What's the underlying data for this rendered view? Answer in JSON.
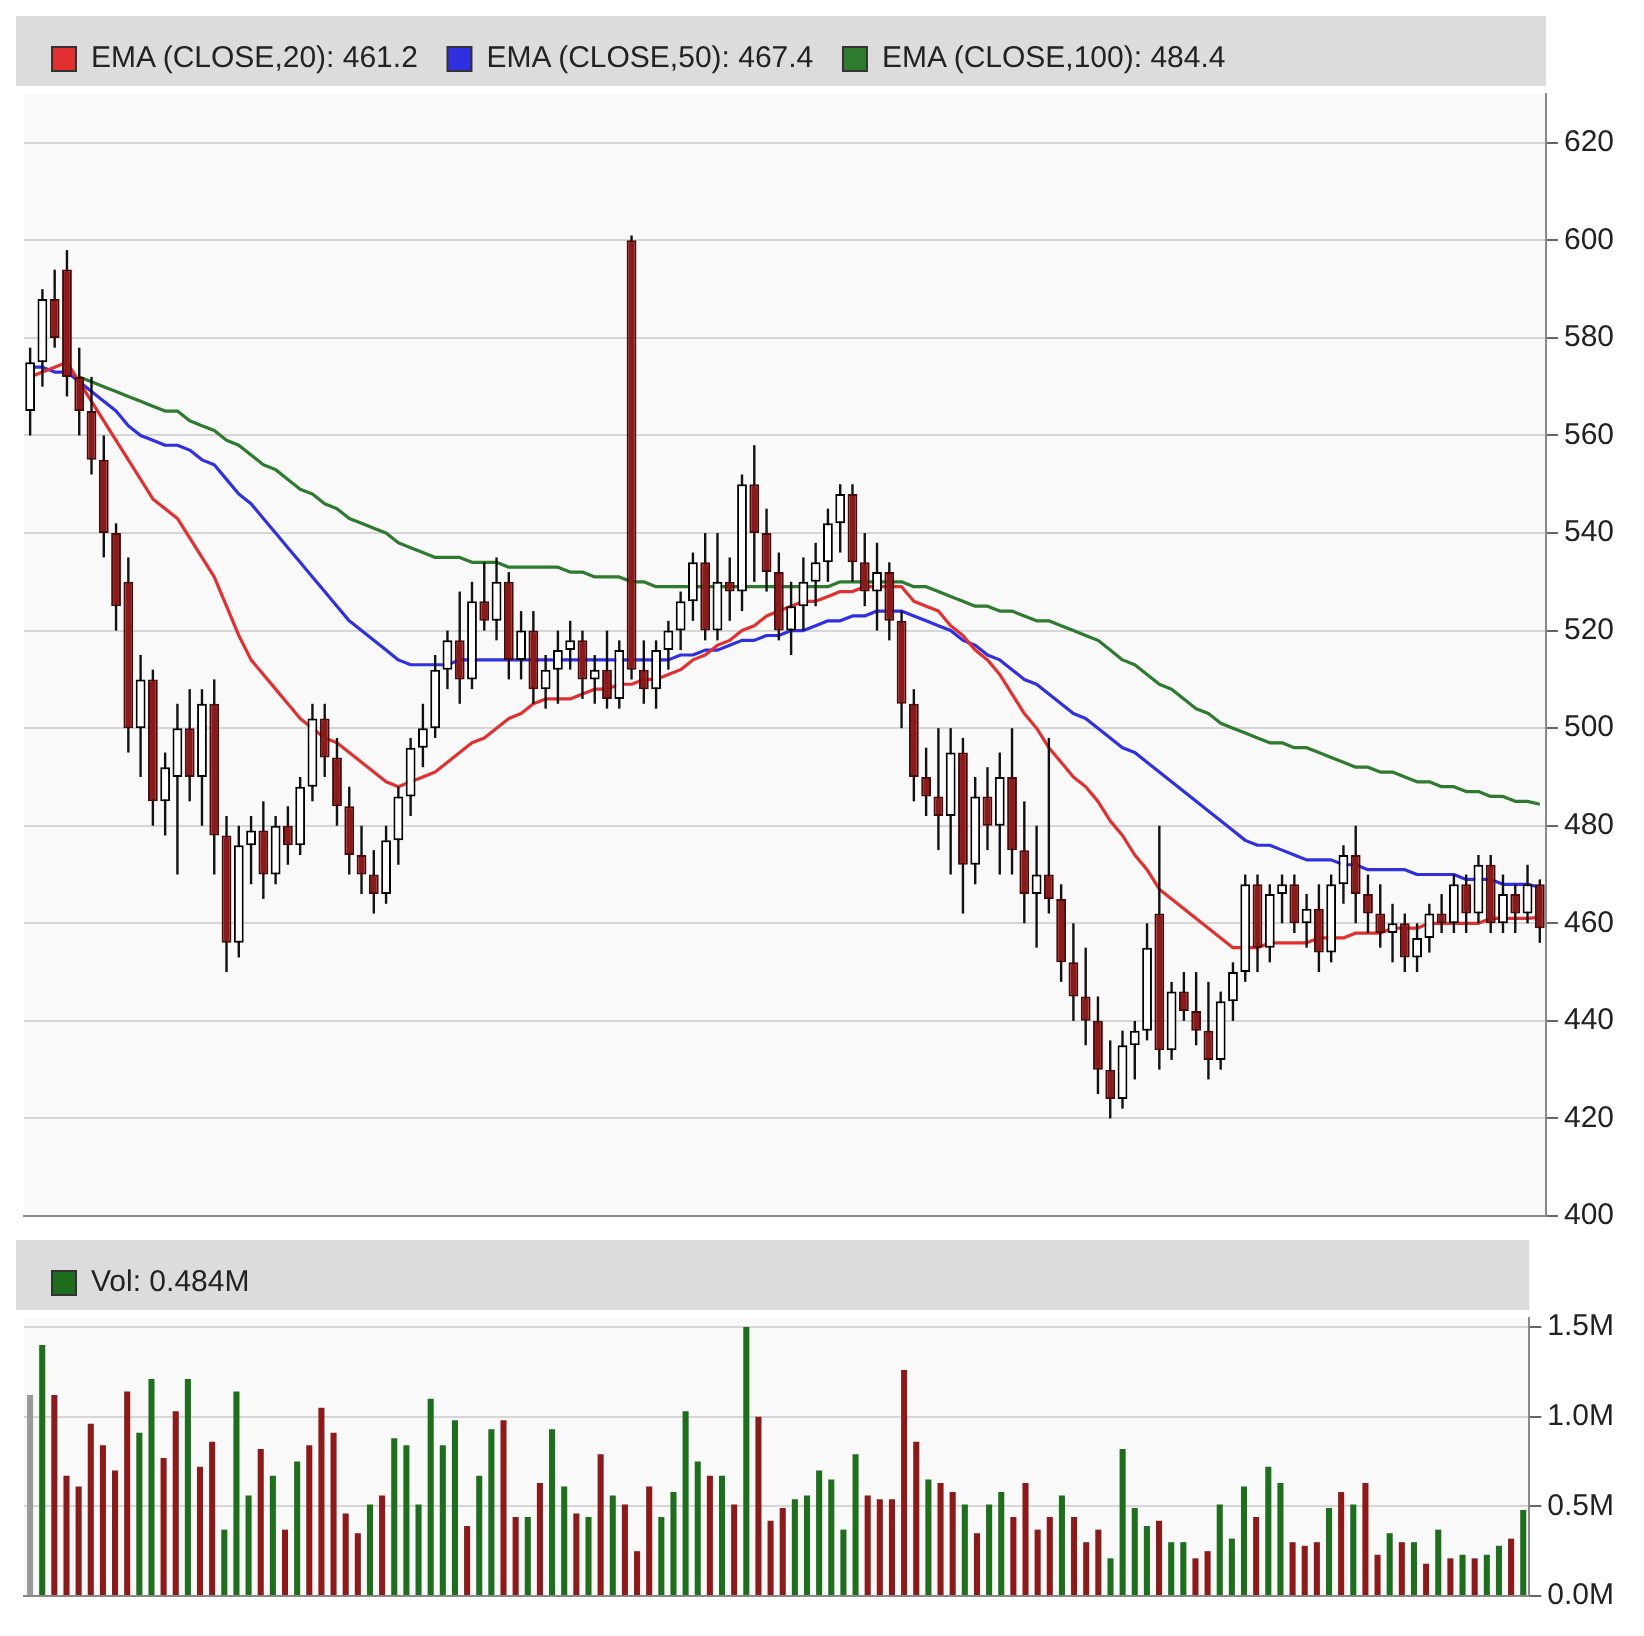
{
  "chart_data": [
    {
      "type": "candlestick",
      "categories": [
        null,
        null,
        null,
        null,
        null,
        null,
        null,
        null,
        null,
        null,
        null,
        null,
        null,
        null,
        null,
        null,
        null,
        null,
        null,
        null,
        null,
        null,
        null,
        null,
        null,
        null,
        null,
        null,
        null,
        null,
        null,
        null,
        null,
        null,
        null,
        null,
        null,
        null,
        null,
        null,
        null,
        null,
        null,
        null,
        null,
        null,
        null,
        null,
        null,
        null,
        null,
        null,
        null,
        null,
        null,
        null,
        null,
        null,
        null,
        null,
        null,
        null,
        null,
        null,
        null,
        null,
        null,
        null,
        null,
        null,
        null,
        null,
        null,
        null,
        null,
        null,
        null,
        null,
        null,
        null,
        null,
        null,
        null,
        null,
        null,
        null,
        null,
        null,
        null,
        null,
        null,
        null,
        null,
        null,
        null,
        null,
        null,
        null,
        null,
        null,
        null,
        null,
        null,
        null,
        null,
        null,
        null,
        null,
        null,
        null,
        null,
        null,
        null,
        null,
        null,
        null,
        null,
        null,
        null,
        null,
        null,
        null,
        null,
        null
      ],
      "ohlc": [
        [
          565,
          578,
          560,
          575
        ],
        [
          575,
          590,
          570,
          588
        ],
        [
          588,
          594,
          578,
          580
        ],
        [
          594,
          598,
          568,
          572
        ],
        [
          572,
          578,
          560,
          565
        ],
        [
          565,
          572,
          552,
          555
        ],
        [
          555,
          560,
          535,
          540
        ],
        [
          540,
          542,
          520,
          525
        ],
        [
          530,
          535,
          495,
          500
        ],
        [
          500,
          515,
          490,
          510
        ],
        [
          510,
          512,
          480,
          485
        ],
        [
          485,
          495,
          478,
          492
        ],
        [
          490,
          505,
          470,
          500
        ],
        [
          500,
          508,
          485,
          490
        ],
        [
          490,
          508,
          480,
          505
        ],
        [
          505,
          510,
          470,
          478
        ],
        [
          478,
          482,
          450,
          456
        ],
        [
          456,
          480,
          453,
          476
        ],
        [
          476,
          482,
          468,
          479
        ],
        [
          479,
          485,
          465,
          470
        ],
        [
          470,
          482,
          468,
          480
        ],
        [
          480,
          484,
          472,
          476
        ],
        [
          476,
          490,
          474,
          488
        ],
        [
          488,
          505,
          485,
          502
        ],
        [
          502,
          505,
          490,
          494
        ],
        [
          494,
          498,
          480,
          484
        ],
        [
          484,
          488,
          470,
          474
        ],
        [
          474,
          480,
          466,
          470
        ],
        [
          470,
          475,
          462,
          466
        ],
        [
          466,
          480,
          464,
          477
        ],
        [
          477,
          488,
          472,
          486
        ],
        [
          486,
          498,
          482,
          496
        ],
        [
          496,
          505,
          492,
          500
        ],
        [
          500,
          515,
          498,
          512
        ],
        [
          512,
          520,
          508,
          518
        ],
        [
          518,
          528,
          505,
          510
        ],
        [
          510,
          530,
          508,
          526
        ],
        [
          526,
          534,
          520,
          522
        ],
        [
          522,
          535,
          518,
          530
        ],
        [
          530,
          532,
          510,
          514
        ],
        [
          514,
          524,
          510,
          520
        ],
        [
          520,
          524,
          505,
          508
        ],
        [
          508,
          515,
          504,
          512
        ],
        [
          512,
          520,
          505,
          516
        ],
        [
          516,
          522,
          512,
          518
        ],
        [
          518,
          520,
          506,
          510
        ],
        [
          510,
          515,
          505,
          512
        ],
        [
          512,
          520,
          504,
          506
        ],
        [
          506,
          518,
          504,
          516
        ],
        [
          600,
          601,
          510,
          512
        ],
        [
          512,
          518,
          505,
          508
        ],
        [
          508,
          518,
          504,
          516
        ],
        [
          516,
          522,
          512,
          520
        ],
        [
          520,
          528,
          516,
          526
        ],
        [
          526,
          536,
          522,
          534
        ],
        [
          534,
          540,
          518,
          520
        ],
        [
          520,
          540,
          518,
          530
        ],
        [
          530,
          535,
          522,
          528
        ],
        [
          528,
          552,
          524,
          550
        ],
        [
          550,
          558,
          530,
          540
        ],
        [
          540,
          545,
          528,
          532
        ],
        [
          532,
          536,
          518,
          520
        ],
        [
          520,
          530,
          515,
          525
        ],
        [
          525,
          535,
          520,
          530
        ],
        [
          530,
          538,
          525,
          534
        ],
        [
          534,
          545,
          530,
          542
        ],
        [
          542,
          550,
          536,
          548
        ],
        [
          548,
          550,
          530,
          534
        ],
        [
          534,
          540,
          525,
          528
        ],
        [
          528,
          538,
          520,
          532
        ],
        [
          532,
          534,
          518,
          522
        ],
        [
          522,
          524,
          500,
          505
        ],
        [
          505,
          508,
          485,
          490
        ],
        [
          490,
          496,
          482,
          486
        ],
        [
          486,
          500,
          475,
          482
        ],
        [
          482,
          500,
          470,
          495
        ],
        [
          495,
          498,
          462,
          472
        ],
        [
          472,
          490,
          468,
          486
        ],
        [
          486,
          492,
          475,
          480
        ],
        [
          480,
          495,
          470,
          490
        ],
        [
          490,
          500,
          470,
          475
        ],
        [
          475,
          485,
          460,
          466
        ],
        [
          466,
          480,
          455,
          470
        ],
        [
          470,
          498,
          462,
          465
        ],
        [
          465,
          468,
          448,
          452
        ],
        [
          452,
          460,
          440,
          445
        ],
        [
          445,
          455,
          435,
          440
        ],
        [
          440,
          445,
          425,
          430
        ],
        [
          430,
          436,
          420,
          424
        ],
        [
          424,
          438,
          422,
          435
        ],
        [
          435,
          440,
          428,
          438
        ],
        [
          438,
          460,
          436,
          455
        ],
        [
          462,
          480,
          430,
          434
        ],
        [
          434,
          448,
          432,
          446
        ],
        [
          446,
          450,
          440,
          442
        ],
        [
          442,
          450,
          435,
          438
        ],
        [
          438,
          448,
          428,
          432
        ],
        [
          432,
          446,
          430,
          444
        ],
        [
          444,
          452,
          440,
          450
        ],
        [
          450,
          470,
          448,
          468
        ],
        [
          468,
          470,
          450,
          455
        ],
        [
          455,
          468,
          452,
          466
        ],
        [
          466,
          470,
          460,
          468
        ],
        [
          468,
          470,
          458,
          460
        ],
        [
          460,
          466,
          455,
          463
        ],
        [
          463,
          468,
          450,
          454
        ],
        [
          454,
          470,
          452,
          468
        ],
        [
          468,
          476,
          464,
          474
        ],
        [
          474,
          480,
          460,
          466
        ],
        [
          466,
          470,
          458,
          462
        ],
        [
          462,
          468,
          455,
          458
        ],
        [
          458,
          464,
          452,
          460
        ],
        [
          460,
          462,
          450,
          453
        ],
        [
          453,
          460,
          450,
          457
        ],
        [
          457,
          464,
          454,
          462
        ],
        [
          462,
          466,
          458,
          460
        ],
        [
          460,
          470,
          458,
          468
        ],
        [
          468,
          470,
          458,
          462
        ],
        [
          462,
          474,
          460,
          472
        ],
        [
          472,
          474,
          458,
          460
        ],
        [
          460,
          470,
          458,
          466
        ],
        [
          466,
          468,
          458,
          462
        ],
        [
          462,
          472,
          460,
          468
        ],
        [
          468,
          469,
          456,
          459
        ]
      ],
      "series": [
        {
          "type": "line",
          "name": "EMA (CLOSE,20): 461.2",
          "color": "#e03030",
          "values": [
            572,
            573,
            574,
            575,
            571,
            567,
            563,
            559,
            555,
            551,
            547,
            545,
            543,
            539,
            535,
            531,
            525,
            519,
            514,
            511,
            508,
            505,
            502,
            500,
            498,
            497,
            495,
            493,
            491,
            489,
            488,
            489,
            490,
            491,
            493,
            495,
            497,
            498,
            500,
            502,
            503,
            505,
            506,
            506,
            506,
            507,
            508,
            508,
            509,
            509,
            510,
            510,
            511,
            512,
            514,
            515,
            517,
            518,
            520,
            521,
            523,
            524,
            525,
            526,
            526,
            527,
            528,
            528,
            529,
            529,
            529,
            529,
            526,
            525,
            524,
            521,
            519,
            516,
            514,
            511,
            507,
            503,
            500,
            496,
            493,
            490,
            488,
            485,
            481,
            478,
            474,
            471,
            467,
            465,
            463,
            461,
            459,
            457,
            455,
            455,
            455,
            456,
            456,
            456,
            456,
            457,
            457,
            457,
            458,
            458,
            458,
            459,
            459,
            459,
            460,
            460,
            460,
            460,
            460,
            461,
            461,
            461,
            461,
            461.2
          ]
        },
        {
          "type": "line",
          "name": "EMA (CLOSE,50): 467.4",
          "color": "#3030e0",
          "values": [
            574,
            574,
            573,
            573,
            571,
            569,
            567,
            565,
            562,
            560,
            559,
            558,
            558,
            557,
            555,
            554,
            551,
            548,
            546,
            543,
            540,
            537,
            534,
            531,
            528,
            525,
            522,
            520,
            518,
            516,
            514,
            513,
            513,
            513,
            513,
            514,
            514,
            514,
            514,
            514,
            514,
            514,
            514,
            514,
            514,
            514,
            514,
            514,
            514,
            514,
            514,
            514,
            514,
            515,
            515,
            516,
            516,
            517,
            518,
            518,
            519,
            519,
            520,
            520,
            521,
            522,
            522,
            523,
            523,
            524,
            524,
            524,
            523,
            522,
            521,
            520,
            518,
            517,
            515,
            514,
            512,
            510,
            509,
            507,
            505,
            503,
            502,
            500,
            498,
            496,
            495,
            493,
            491,
            489,
            487,
            485,
            483,
            481,
            479,
            477,
            476,
            476,
            475,
            474,
            473,
            473,
            473,
            472,
            472,
            471,
            471,
            471,
            471,
            470,
            470,
            470,
            470,
            469,
            469,
            469,
            468,
            468,
            468,
            467.4
          ]
        },
        {
          "type": "line",
          "name": "EMA (CLOSE,100): 484.4",
          "color": "#2e7a2e",
          "values": [
            null,
            null,
            null,
            null,
            572,
            571,
            570,
            569,
            568,
            567,
            566,
            565,
            565,
            563,
            562,
            561,
            559,
            558,
            556,
            554,
            553,
            551,
            549,
            548,
            546,
            545,
            543,
            542,
            541,
            540,
            538,
            537,
            536,
            535,
            535,
            535,
            534,
            534,
            534,
            533,
            533,
            533,
            533,
            533,
            532,
            532,
            531,
            531,
            531,
            530,
            530,
            529,
            529,
            529,
            529,
            529,
            529,
            529,
            529,
            529,
            529,
            529,
            529,
            529,
            529,
            529,
            530,
            530,
            530,
            530,
            530,
            530,
            529,
            529,
            528,
            527,
            526,
            525,
            525,
            524,
            524,
            523,
            522,
            522,
            521,
            520,
            519,
            518,
            516,
            514,
            513,
            511,
            509,
            508,
            506,
            504,
            503,
            501,
            500,
            499,
            498,
            497,
            497,
            496,
            496,
            495,
            494,
            493,
            492,
            492,
            491,
            491,
            490,
            489,
            489,
            488,
            488,
            487,
            487,
            486,
            486,
            485,
            485,
            484.4
          ]
        }
      ],
      "ylim": [
        400,
        630
      ],
      "yticks": [
        400,
        420,
        440,
        460,
        480,
        500,
        520,
        540,
        560,
        580,
        600,
        620
      ],
      "grid": "y",
      "legend": "top left",
      "tick_labels": "y"
    },
    {
      "type": "bar",
      "categories": [
        null,
        null,
        null,
        null,
        null,
        null,
        null,
        null,
        null,
        null,
        null,
        null,
        null,
        null,
        null,
        null,
        null,
        null,
        null,
        null,
        null,
        null,
        null,
        null,
        null,
        null,
        null,
        null,
        null,
        null,
        null,
        null,
        null,
        null,
        null,
        null,
        null,
        null,
        null,
        null,
        null,
        null,
        null,
        null,
        null,
        null,
        null,
        null,
        null,
        null,
        null,
        null,
        null,
        null,
        null,
        null,
        null,
        null,
        null,
        null,
        null,
        null,
        null,
        null,
        null,
        null,
        null,
        null,
        null,
        null,
        null,
        null,
        null,
        null,
        null,
        null,
        null,
        null,
        null,
        null,
        null,
        null,
        null,
        null,
        null,
        null,
        null,
        null,
        null,
        null,
        null,
        null,
        null,
        null,
        null,
        null,
        null,
        null,
        null,
        null,
        null,
        null,
        null,
        null,
        null,
        null,
        null,
        null,
        null,
        null,
        null,
        null,
        null,
        null,
        null,
        null,
        null,
        null,
        null,
        null,
        null,
        null,
        null,
        null
      ],
      "series": [
        {
          "name": "Vol: 0.484M",
          "color": "#1e6e1e",
          "values": [
            1.12,
            1.4,
            1.12,
            0.67,
            0.61,
            0.96,
            0.84,
            0.7,
            1.14,
            0.91,
            1.21,
            0.77,
            1.03,
            1.21,
            0.72,
            0.86,
            0.37,
            1.14,
            0.56,
            0.82,
            0.67,
            0.37,
            0.75,
            0.84,
            1.05,
            0.91,
            0.46,
            0.35,
            0.51,
            0.56,
            0.88,
            0.84,
            0.51,
            1.1,
            0.84,
            0.98,
            0.39,
            0.67,
            0.93,
            0.98,
            0.44,
            0.44,
            0.63,
            0.93,
            0.61,
            0.46,
            0.44,
            0.79,
            0.56,
            0.51,
            0.25,
            0.61,
            0.44,
            0.58,
            1.03,
            0.75,
            0.67,
            0.67,
            0.51,
            1.5,
            1.0,
            0.42,
            0.49,
            0.54,
            0.56,
            0.7,
            0.65,
            0.37,
            0.79,
            0.56,
            0.54,
            0.54,
            1.26,
            0.86,
            0.65,
            0.63,
            0.58,
            0.51,
            0.35,
            0.51,
            0.58,
            0.44,
            0.63,
            0.37,
            0.44,
            0.56,
            0.44,
            0.3,
            0.37,
            0.21,
            0.82,
            0.49,
            0.39,
            0.42,
            0.3,
            0.3,
            0.21,
            0.25,
            0.51,
            0.32,
            0.61,
            0.44,
            0.72,
            0.63,
            0.3,
            0.28,
            0.3,
            0.49,
            0.58,
            0.51,
            0.63,
            0.23,
            0.35,
            0.3,
            0.3,
            0.18,
            0.37,
            0.21,
            0.23,
            0.21,
            0.23,
            0.28,
            0.32,
            0.48
          ],
          "colors": [
            "#999999",
            "#1e6e1e",
            "#8b1a1a",
            "#8b1a1a",
            "#8b1a1a",
            "#8b1a1a",
            "#8b1a1a",
            "#8b1a1a",
            "#8b1a1a",
            "#1e6e1e",
            "#1e6e1e",
            "#8b1a1a",
            "#8b1a1a",
            "#1e6e1e",
            "#8b1a1a",
            "#8b1a1a",
            "#1e6e1e",
            "#1e6e1e",
            "#1e6e1e",
            "#8b1a1a",
            "#1e6e1e",
            "#8b1a1a",
            "#1e6e1e",
            "#8b1a1a",
            "#8b1a1a",
            "#8b1a1a",
            "#8b1a1a",
            "#8b1a1a",
            "#1e6e1e",
            "#8b1a1a",
            "#1e6e1e",
            "#1e6e1e",
            "#1e6e1e",
            "#1e6e1e",
            "#1e6e1e",
            "#1e6e1e",
            "#8b1a1a",
            "#1e6e1e",
            "#1e6e1e",
            "#8b1a1a",
            "#8b1a1a",
            "#1e6e1e",
            "#8b1a1a",
            "#1e6e1e",
            "#1e6e1e",
            "#8b1a1a",
            "#1e6e1e",
            "#8b1a1a",
            "#1e6e1e",
            "#8b1a1a",
            "#8b1a1a",
            "#8b1a1a",
            "#1e6e1e",
            "#1e6e1e",
            "#1e6e1e",
            "#1e6e1e",
            "#8b1a1a",
            "#1e6e1e",
            "#8b1a1a",
            "#1e6e1e",
            "#8b1a1a",
            "#8b1a1a",
            "#8b1a1a",
            "#1e6e1e",
            "#1e6e1e",
            "#1e6e1e",
            "#1e6e1e",
            "#1e6e1e",
            "#1e6e1e",
            "#8b1a1a",
            "#8b1a1a",
            "#8b1a1a",
            "#8b1a1a",
            "#8b1a1a",
            "#1e6e1e",
            "#8b1a1a",
            "#8b1a1a",
            "#1e6e1e",
            "#8b1a1a",
            "#1e6e1e",
            "#1e6e1e",
            "#8b1a1a",
            "#8b1a1a",
            "#8b1a1a",
            "#8b1a1a",
            "#1e6e1e",
            "#8b1a1a",
            "#8b1a1a",
            "#8b1a1a",
            "#1e6e1e",
            "#1e6e1e",
            "#1e6e1e",
            "#1e6e1e",
            "#8b1a1a",
            "#1e6e1e",
            "#1e6e1e",
            "#8b1a1a",
            "#8b1a1a",
            "#1e6e1e",
            "#1e6e1e",
            "#1e6e1e",
            "#8b1a1a",
            "#1e6e1e",
            "#1e6e1e",
            "#8b1a1a",
            "#8b1a1a",
            "#8b1a1a",
            "#1e6e1e",
            "#8b1a1a",
            "#1e6e1e",
            "#8b1a1a",
            "#8b1a1a",
            "#1e6e1e",
            "#8b1a1a",
            "#1e6e1e",
            "#8b1a1a",
            "#1e6e1e",
            "#8b1a1a",
            "#1e6e1e",
            "#8b1a1a",
            "#1e6e1e",
            "#1e6e1e",
            "#8b1a1a",
            "#1e6e1e"
          ]
        }
      ],
      "ylim": [
        0,
        1.55
      ],
      "yticks": [
        {
          "value": 0,
          "label": "0.0M"
        },
        {
          "value": 0.5,
          "label": "0.5M"
        },
        {
          "value": 1,
          "label": "1.0M"
        },
        {
          "value": 1.5,
          "label": "1.5M"
        }
      ],
      "grid": "y",
      "legend": "top left",
      "tick_labels": "y"
    }
  ]
}
